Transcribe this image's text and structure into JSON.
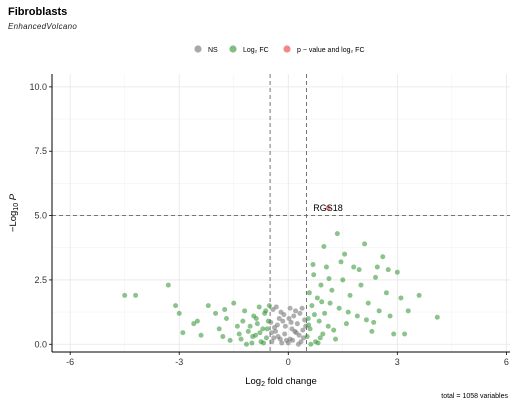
{
  "chart_data": {
    "type": "scatter",
    "title": "Fibroblasts",
    "subtitle": "EnhancedVolcano",
    "xlabel": "Log2 fold change",
    "ylabel": "-Log10 P",
    "xlim": [
      -6.5,
      6.1
    ],
    "ylim": [
      -0.3,
      10.5
    ],
    "xticks": [
      "-6",
      "-3",
      "0",
      "3",
      "6"
    ],
    "yticks": [
      "0.0",
      "2.5",
      "5.0",
      "7.5",
      "10.0"
    ],
    "legend_position": "top",
    "cutoffs": {
      "fc": [
        -0.5,
        0.5
      ],
      "p": 5.0
    },
    "footer": "total = 1058 variables",
    "series": [
      {
        "name": "NS",
        "color": "#6e6e6e",
        "points": [
          [
            -0.45,
            0.1
          ],
          [
            -0.4,
            0.25
          ],
          [
            -0.35,
            0.5
          ],
          [
            -0.3,
            0.75
          ],
          [
            -0.25,
            1.0
          ],
          [
            -0.2,
            1.25
          ],
          [
            -0.15,
            0.9
          ],
          [
            -0.1,
            0.4
          ],
          [
            -0.05,
            0.15
          ],
          [
            0.0,
            0.05
          ],
          [
            0.05,
            0.2
          ],
          [
            0.1,
            0.6
          ],
          [
            0.15,
            1.1
          ],
          [
            0.2,
            1.3
          ],
          [
            0.25,
            0.8
          ],
          [
            0.3,
            0.35
          ],
          [
            0.35,
            0.1
          ],
          [
            0.4,
            0.55
          ],
          [
            0.45,
            0.95
          ],
          [
            -0.42,
            1.35
          ],
          [
            -0.38,
            0.65
          ],
          [
            -0.28,
            0.3
          ],
          [
            -0.18,
            0.05
          ],
          [
            -0.08,
            0.7
          ],
          [
            0.02,
            1.0
          ],
          [
            0.12,
            0.15
          ],
          [
            0.22,
            0.45
          ],
          [
            0.32,
            1.2
          ],
          [
            0.42,
            0.25
          ],
          [
            -0.48,
            0.85
          ],
          [
            -0.33,
            1.45
          ],
          [
            -0.22,
            0.2
          ],
          [
            0.08,
            0.85
          ],
          [
            0.18,
            0.5
          ],
          [
            0.38,
            1.4
          ],
          [
            -0.12,
            1.15
          ],
          [
            0.28,
            0.0
          ],
          [
            0.48,
            0.7
          ],
          [
            -0.46,
            0.45
          ],
          [
            0.05,
            1.4
          ]
        ]
      },
      {
        "name": "Log2 FC",
        "color": "#2e9130",
        "points": [
          [
            -4.5,
            1.9
          ],
          [
            -4.2,
            1.9
          ],
          [
            -3.3,
            2.3
          ],
          [
            -3.1,
            1.5
          ],
          [
            -3.0,
            1.2
          ],
          [
            -2.9,
            0.45
          ],
          [
            -2.6,
            0.8
          ],
          [
            -2.4,
            0.35
          ],
          [
            -2.2,
            1.5
          ],
          [
            -2.0,
            1.2
          ],
          [
            -1.9,
            0.6
          ],
          [
            -1.8,
            0.3
          ],
          [
            -1.7,
            1.0
          ],
          [
            -1.6,
            0.15
          ],
          [
            -1.5,
            1.6
          ],
          [
            -1.4,
            0.7
          ],
          [
            -1.3,
            0.2
          ],
          [
            -1.2,
            1.3
          ],
          [
            -1.1,
            0.5
          ],
          [
            -1.0,
            0.05
          ],
          [
            -0.95,
            1.1
          ],
          [
            -0.9,
            0.35
          ],
          [
            -0.85,
            0.8
          ],
          [
            -0.8,
            1.45
          ],
          [
            -0.75,
            0.1
          ],
          [
            -0.7,
            0.6
          ],
          [
            -0.65,
            1.2
          ],
          [
            -0.6,
            0.25
          ],
          [
            -0.55,
            0.9
          ],
          [
            -0.52,
            1.5
          ],
          [
            -1.25,
            0.9
          ],
          [
            -1.15,
            0.0
          ],
          [
            -1.05,
            0.7
          ],
          [
            -0.98,
            0.3
          ],
          [
            -0.88,
            1.0
          ],
          [
            -0.78,
            0.45
          ],
          [
            -0.68,
            0.05
          ],
          [
            -0.62,
            1.3
          ],
          [
            -0.58,
            0.6
          ],
          [
            -2.5,
            0.9
          ],
          [
            -1.75,
            1.35
          ],
          [
            -1.35,
            0.4
          ],
          [
            0.52,
            0.3
          ],
          [
            0.55,
            1.0
          ],
          [
            0.58,
            2.0
          ],
          [
            0.6,
            0.6
          ],
          [
            0.65,
            1.5
          ],
          [
            0.7,
            2.7
          ],
          [
            0.75,
            0.1
          ],
          [
            0.8,
            1.8
          ],
          [
            0.85,
            0.9
          ],
          [
            0.9,
            2.3
          ],
          [
            0.95,
            0.4
          ],
          [
            1.0,
            1.2
          ],
          [
            1.05,
            3.0
          ],
          [
            1.1,
            0.7
          ],
          [
            1.15,
            1.6
          ],
          [
            1.2,
            2.1
          ],
          [
            1.3,
            0.2
          ],
          [
            1.35,
            4.3
          ],
          [
            1.4,
            1.4
          ],
          [
            1.5,
            2.5
          ],
          [
            1.6,
            0.8
          ],
          [
            1.7,
            1.9
          ],
          [
            1.8,
            3.0
          ],
          [
            1.9,
            1.1
          ],
          [
            2.0,
            2.3
          ],
          [
            2.1,
            3.9
          ],
          [
            2.2,
            1.6
          ],
          [
            2.3,
            0.5
          ],
          [
            2.4,
            2.6
          ],
          [
            2.5,
            1.3
          ],
          [
            2.6,
            3.4
          ],
          [
            2.7,
            2.0
          ],
          [
            2.8,
            1.1
          ],
          [
            2.9,
            0.4
          ],
          [
            3.0,
            2.8
          ],
          [
            3.1,
            1.8
          ],
          [
            3.3,
            1.3
          ],
          [
            3.6,
            1.9
          ],
          [
            4.1,
            1.05
          ],
          [
            3.2,
            0.4
          ],
          [
            2.35,
            0.85
          ],
          [
            1.45,
            3.2
          ],
          [
            0.98,
            3.8
          ],
          [
            0.62,
            0.0
          ],
          [
            0.72,
            1.15
          ],
          [
            0.88,
            0.25
          ],
          [
            1.25,
            0.55
          ],
          [
            1.55,
            3.5
          ],
          [
            1.95,
            2.9
          ],
          [
            2.15,
            0.95
          ],
          [
            2.45,
            3.0
          ],
          [
            2.75,
            2.9
          ],
          [
            0.82,
            0.05
          ],
          [
            0.92,
            1.65
          ],
          [
            1.12,
            2.55
          ],
          [
            0.68,
            3.1
          ],
          [
            1.65,
            1.25
          ],
          [
            0.56,
            0.75
          ]
        ]
      },
      {
        "name": "p - value and log2 FC",
        "color": "#e8393f",
        "points": [
          [
            1.1,
            5.3
          ]
        ]
      }
    ],
    "annotations": [
      {
        "text": "RGS18",
        "x": 1.1,
        "y": 5.3
      }
    ]
  }
}
